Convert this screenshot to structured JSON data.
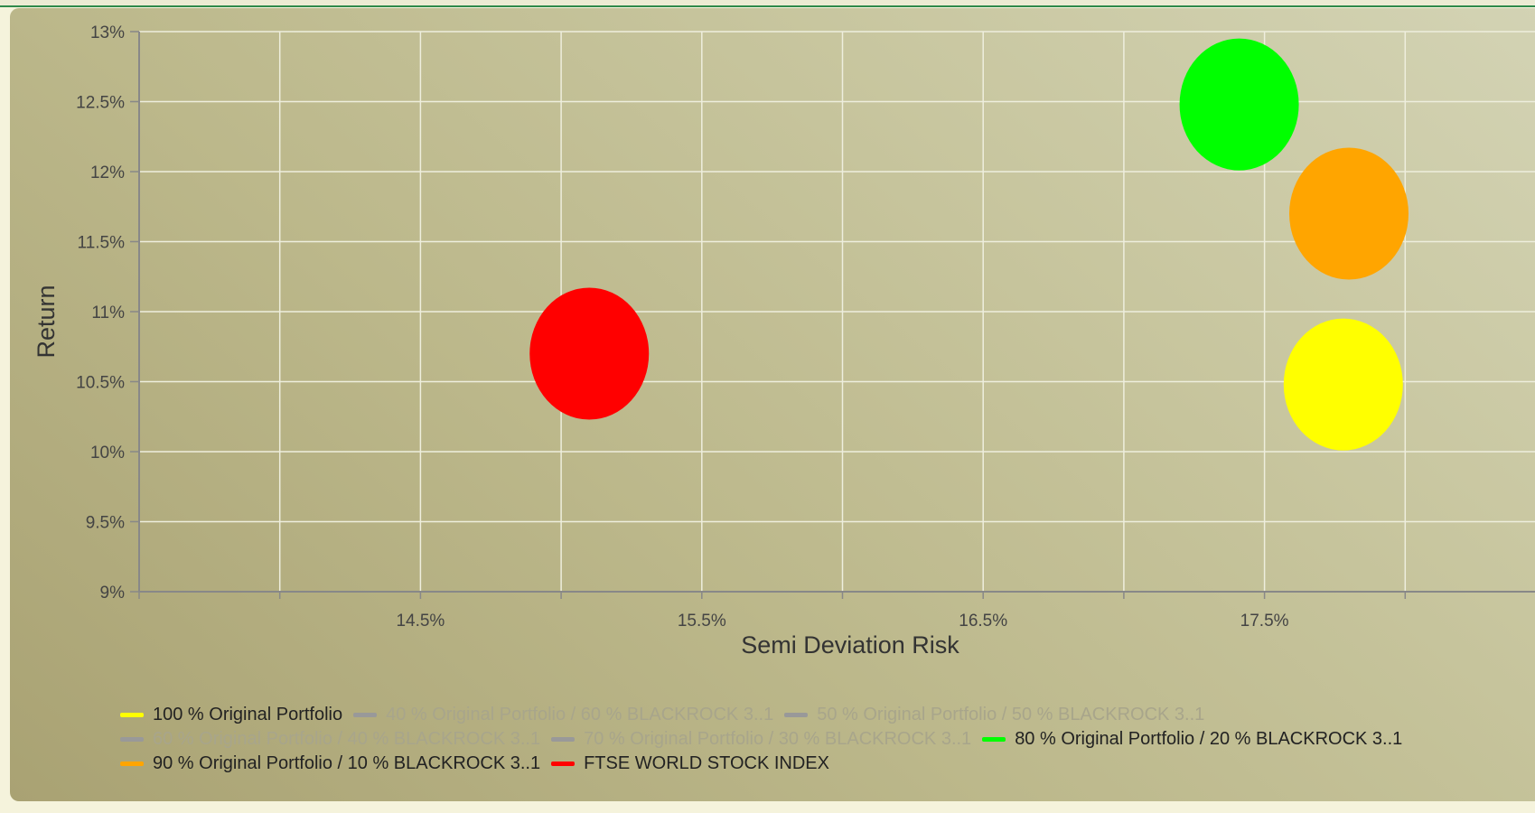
{
  "chart_data": {
    "type": "scatter",
    "xlabel": "Semi Deviation Risk",
    "ylabel": "Return",
    "xlim": [
      13.5,
      18.5
    ],
    "ylim": [
      9,
      13
    ],
    "x_gridlines": [
      13.5,
      14.0,
      14.5,
      15.0,
      15.5,
      16.0,
      16.5,
      17.0,
      17.5,
      18.0
    ],
    "x_ticks": [
      {
        "value": 14.5,
        "label": "14.5%"
      },
      {
        "value": 15.5,
        "label": "15.5%"
      },
      {
        "value": 16.5,
        "label": "16.5%"
      },
      {
        "value": 17.5,
        "label": "17.5%"
      }
    ],
    "y_ticks": [
      {
        "value": 9,
        "label": "9%"
      },
      {
        "value": 9.5,
        "label": "9.5%"
      },
      {
        "value": 10,
        "label": "10%"
      },
      {
        "value": 10.5,
        "label": "10.5%"
      },
      {
        "value": 11,
        "label": "11%"
      },
      {
        "value": 11.5,
        "label": "11.5%"
      },
      {
        "value": 12,
        "label": "12%"
      },
      {
        "value": 12.5,
        "label": "12.5%"
      },
      {
        "value": 13,
        "label": "13%"
      }
    ],
    "grid": true,
    "legend_position": "bottom-left",
    "series": [
      {
        "name": "100 % Original Portfolio",
        "color": "#ffff00",
        "visible": true,
        "points": [
          {
            "x": 17.78,
            "y": 10.48
          }
        ]
      },
      {
        "name": "40 % Original Portfolio / 60 % BLACKROCK 3..1",
        "color": "#999999",
        "visible": false,
        "points": []
      },
      {
        "name": "50 % Original Portfolio / 50 % BLACKROCK 3..1",
        "color": "#999999",
        "visible": false,
        "points": []
      },
      {
        "name": "60 % Original Portfolio / 40 % BLACKROCK 3..1",
        "color": "#999999",
        "visible": false,
        "points": []
      },
      {
        "name": "70 % Original Portfolio / 30 % BLACKROCK 3..1",
        "color": "#999999",
        "visible": false,
        "points": []
      },
      {
        "name": "80 % Original Portfolio / 20 % BLACKROCK 3..1",
        "color": "#00ff00",
        "visible": true,
        "points": [
          {
            "x": 17.41,
            "y": 12.48
          }
        ]
      },
      {
        "name": "90 % Original Portfolio / 10 % BLACKROCK 3..1",
        "color": "#ffa500",
        "visible": true,
        "points": [
          {
            "x": 17.8,
            "y": 11.7
          }
        ]
      },
      {
        "name": "FTSE WORLD STOCK INDEX",
        "color": "#ff0000",
        "visible": true,
        "points": [
          {
            "x": 15.1,
            "y": 10.7
          }
        ]
      }
    ]
  }
}
